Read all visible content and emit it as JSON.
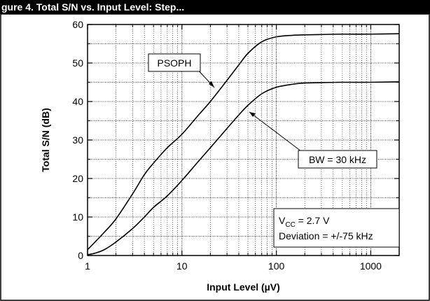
{
  "header_text": "gure 4. Total S/N vs. Input Level: Step...",
  "chart_data": {
    "type": "line",
    "title": "",
    "xlabel": "Input Level (µV)",
    "ylabel": "Total S/N (dB)",
    "xscale": "log",
    "xlim": [
      1,
      2000
    ],
    "ylim": [
      0,
      60
    ],
    "x_ticks": [
      1,
      10,
      100,
      1000
    ],
    "x_tick_labels": [
      "1",
      "10",
      "100",
      "1000"
    ],
    "y_ticks": [
      0,
      10,
      20,
      30,
      40,
      50,
      60
    ],
    "y_tick_labels": [
      "0",
      "10",
      "20",
      "30",
      "40",
      "50",
      "60"
    ],
    "grid": true,
    "series": [
      {
        "name": "PSOPH",
        "x": [
          1,
          1.2,
          1.5,
          2,
          3,
          4,
          5,
          7,
          10,
          15,
          20,
          30,
          40,
          50,
          70,
          100,
          150,
          200,
          300,
          500,
          1000,
          2000
        ],
        "y": [
          1.5,
          3.5,
          6,
          9.5,
          16,
          21,
          24,
          28,
          31.5,
          36.5,
          40,
          45.5,
          49.5,
          52.5,
          55.5,
          56.8,
          57.2,
          57.3,
          57.4,
          57.5,
          57.5,
          57.6
        ]
      },
      {
        "name": "BW = 30 kHz",
        "x": [
          1,
          1.2,
          1.5,
          2,
          3,
          4,
          5,
          7,
          10,
          15,
          20,
          30,
          40,
          50,
          70,
          100,
          150,
          200,
          300,
          500,
          1000,
          2000
        ],
        "y": [
          0.2,
          0.6,
          1.5,
          3.5,
          7,
          10,
          12.5,
          15.5,
          19.5,
          24.5,
          28,
          33,
          36.5,
          39,
          42,
          43.7,
          44.5,
          44.8,
          44.9,
          45,
          45,
          45.1
        ]
      }
    ],
    "annotations": [
      {
        "text": "PSOPH",
        "target_series": "PSOPH"
      },
      {
        "text": "BW = 30 kHz",
        "target_series": "BW = 30 kHz"
      }
    ],
    "conditions_box": {
      "vcc_symbol": "V",
      "vcc_subscript": "CC",
      "vcc_value": " = 2.7 V",
      "deviation": "Deviation = +/-75 kHz"
    }
  }
}
